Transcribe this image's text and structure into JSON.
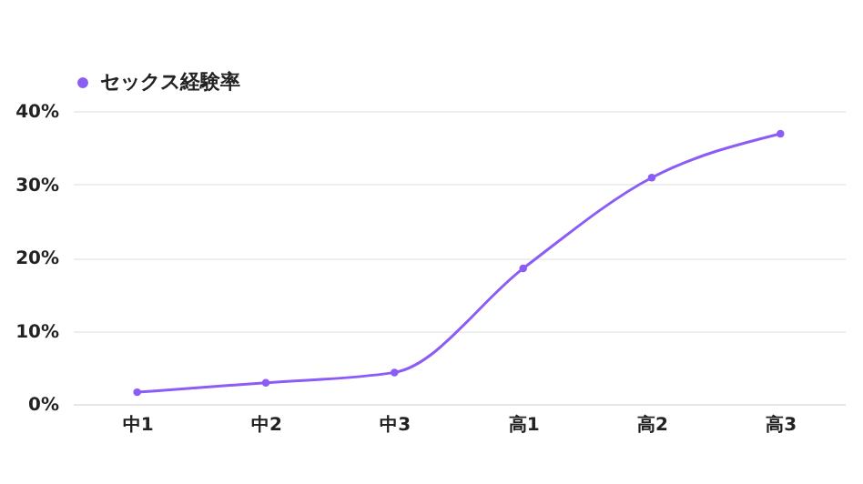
{
  "chart_data": {
    "type": "line",
    "categories": [
      "中1",
      "中2",
      "中3",
      "高1",
      "高2",
      "高3"
    ],
    "series": [
      {
        "name": "セックス経験率",
        "color": "#8b5cf6",
        "values": [
          1.6,
          2.9,
          4.3,
          18.5,
          30.9,
          36.9
        ]
      }
    ],
    "ylim": [
      0,
      40
    ],
    "yticks": [
      {
        "value": 0,
        "label": "0%"
      },
      {
        "value": 10,
        "label": "10%"
      },
      {
        "value": 20,
        "label": "20%"
      },
      {
        "value": 30,
        "label": "30%"
      },
      {
        "value": 40,
        "label": "40%"
      }
    ],
    "grid": "y",
    "legend": "top",
    "marker": "circle"
  }
}
